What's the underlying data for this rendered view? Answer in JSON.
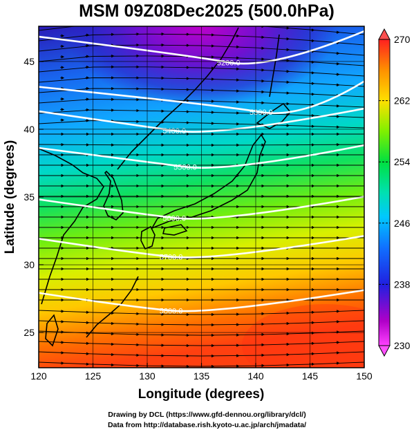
{
  "title": "MSM 09Z08Dec2025 (500.0hPa)",
  "chart_data": {
    "type": "heatmap",
    "title": "MSM 09Z08Dec2025 (500.0hPa)",
    "xlabel": "Longitude (degrees)",
    "ylabel": "Latitude  (degrees)",
    "xlim": [
      120,
      150
    ],
    "ylim": [
      22.4,
      47.6
    ],
    "x_ticks": [
      "120",
      "125",
      "130",
      "135",
      "140",
      "145",
      "150"
    ],
    "y_ticks": [
      "25",
      "30",
      "35",
      "40",
      "45"
    ],
    "colorbar": {
      "min": 230,
      "max": 270,
      "ticks": [
        "230",
        "238",
        "246",
        "254",
        "262",
        "270"
      ],
      "colors": [
        "#d000d0",
        "#8000d8",
        "#2020ff",
        "#00b4ff",
        "#00d0a0",
        "#00e040",
        "#a0f000",
        "#ffe000",
        "#ff9000",
        "#ff3000"
      ]
    },
    "contours": [
      {
        "label": "5200.0",
        "label_at": [
          137.5,
          45.3
        ]
      },
      {
        "label": "5300.0",
        "label_at": [
          140.5,
          41.6
        ]
      },
      {
        "label": "5400.0",
        "label_at": [
          132.5,
          40.2
        ]
      },
      {
        "label": "5500.0",
        "label_at": [
          133.5,
          37.5
        ]
      },
      {
        "label": "5600.0",
        "label_at": [
          132.5,
          33.7
        ]
      },
      {
        "label": "5700.0",
        "label_at": [
          132.2,
          30.8
        ]
      },
      {
        "label": "5800.0",
        "label_at": [
          132.2,
          26.8
        ]
      }
    ]
  },
  "credits": {
    "line1": "Drawing by DCL (https://www.gfd-dennou.org/library/dcl/)",
    "line2": "Data from http://database.rish.kyoto-u.ac.jp/arch/jmadata/"
  }
}
